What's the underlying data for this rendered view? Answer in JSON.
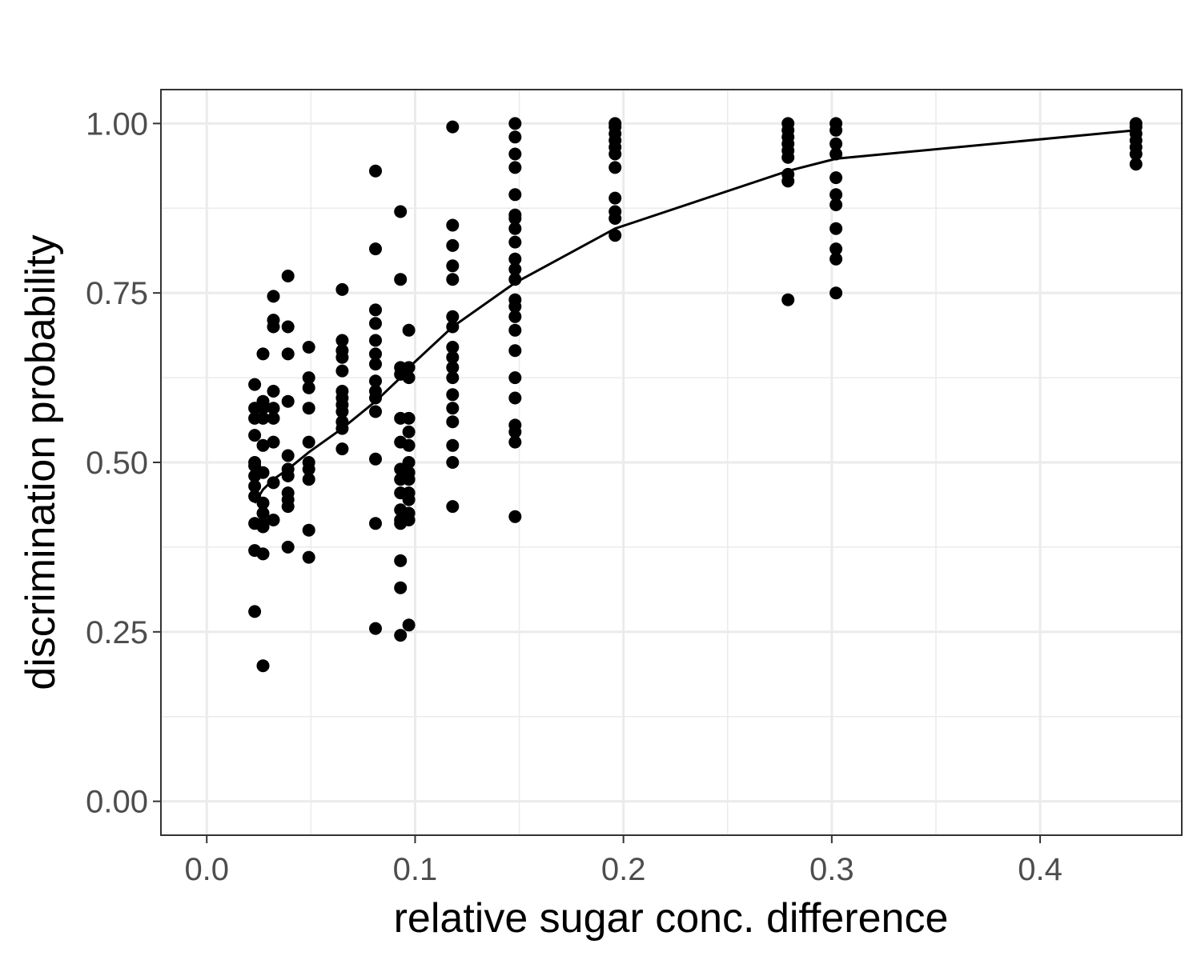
{
  "chart_data": {
    "type": "scatter",
    "title": "",
    "xlabel": "relative sugar conc. difference",
    "ylabel": "discrimination probability",
    "xlim": [
      -0.022,
      0.468
    ],
    "ylim": [
      -0.05,
      1.05
    ],
    "x_ticks": [
      {
        "value": 0.0,
        "label": "0.0"
      },
      {
        "value": 0.1,
        "label": "0.1"
      },
      {
        "value": 0.2,
        "label": "0.2"
      },
      {
        "value": 0.3,
        "label": "0.3"
      },
      {
        "value": 0.4,
        "label": "0.4"
      }
    ],
    "y_ticks": [
      {
        "value": 0.0,
        "label": "0.00"
      },
      {
        "value": 0.25,
        "label": "0.25"
      },
      {
        "value": 0.5,
        "label": "0.50"
      },
      {
        "value": 0.75,
        "label": "0.75"
      },
      {
        "value": 1.0,
        "label": "1.00"
      }
    ],
    "grid": true,
    "legend": "none",
    "colors": {
      "points": "#000000",
      "line": "#000000",
      "grid": "#ebebeb",
      "panel_border": "#333333",
      "tick_label": "#4d4d4d"
    },
    "points": [
      [
        0.023,
        0.28
      ],
      [
        0.023,
        0.37
      ],
      [
        0.023,
        0.41
      ],
      [
        0.023,
        0.45
      ],
      [
        0.023,
        0.465
      ],
      [
        0.023,
        0.48
      ],
      [
        0.023,
        0.495
      ],
      [
        0.023,
        0.5
      ],
      [
        0.023,
        0.54
      ],
      [
        0.023,
        0.565
      ],
      [
        0.023,
        0.58
      ],
      [
        0.023,
        0.615
      ],
      [
        0.027,
        0.2
      ],
      [
        0.027,
        0.365
      ],
      [
        0.027,
        0.405
      ],
      [
        0.027,
        0.41
      ],
      [
        0.027,
        0.425
      ],
      [
        0.027,
        0.44
      ],
      [
        0.027,
        0.485
      ],
      [
        0.027,
        0.525
      ],
      [
        0.027,
        0.565
      ],
      [
        0.027,
        0.58
      ],
      [
        0.027,
        0.59
      ],
      [
        0.027,
        0.66
      ],
      [
        0.032,
        0.415
      ],
      [
        0.032,
        0.47
      ],
      [
        0.032,
        0.53
      ],
      [
        0.032,
        0.565
      ],
      [
        0.032,
        0.58
      ],
      [
        0.032,
        0.605
      ],
      [
        0.032,
        0.7
      ],
      [
        0.032,
        0.71
      ],
      [
        0.032,
        0.745
      ],
      [
        0.039,
        0.375
      ],
      [
        0.039,
        0.435
      ],
      [
        0.039,
        0.445
      ],
      [
        0.039,
        0.455
      ],
      [
        0.039,
        0.48
      ],
      [
        0.039,
        0.49
      ],
      [
        0.039,
        0.51
      ],
      [
        0.039,
        0.59
      ],
      [
        0.039,
        0.66
      ],
      [
        0.039,
        0.7
      ],
      [
        0.039,
        0.775
      ],
      [
        0.049,
        0.36
      ],
      [
        0.049,
        0.4
      ],
      [
        0.049,
        0.475
      ],
      [
        0.049,
        0.49
      ],
      [
        0.049,
        0.5
      ],
      [
        0.049,
        0.53
      ],
      [
        0.049,
        0.58
      ],
      [
        0.049,
        0.61
      ],
      [
        0.049,
        0.625
      ],
      [
        0.049,
        0.67
      ],
      [
        0.065,
        0.52
      ],
      [
        0.065,
        0.55
      ],
      [
        0.065,
        0.56
      ],
      [
        0.065,
        0.575
      ],
      [
        0.065,
        0.585
      ],
      [
        0.065,
        0.595
      ],
      [
        0.065,
        0.605
      ],
      [
        0.065,
        0.635
      ],
      [
        0.065,
        0.655
      ],
      [
        0.065,
        0.665
      ],
      [
        0.065,
        0.68
      ],
      [
        0.065,
        0.755
      ],
      [
        0.081,
        0.255
      ],
      [
        0.081,
        0.41
      ],
      [
        0.081,
        0.505
      ],
      [
        0.081,
        0.575
      ],
      [
        0.081,
        0.595
      ],
      [
        0.081,
        0.605
      ],
      [
        0.081,
        0.62
      ],
      [
        0.081,
        0.645
      ],
      [
        0.081,
        0.66
      ],
      [
        0.081,
        0.68
      ],
      [
        0.081,
        0.705
      ],
      [
        0.081,
        0.725
      ],
      [
        0.081,
        0.815
      ],
      [
        0.081,
        0.93
      ],
      [
        0.093,
        0.245
      ],
      [
        0.093,
        0.315
      ],
      [
        0.093,
        0.355
      ],
      [
        0.093,
        0.41
      ],
      [
        0.093,
        0.415
      ],
      [
        0.093,
        0.43
      ],
      [
        0.093,
        0.455
      ],
      [
        0.093,
        0.475
      ],
      [
        0.093,
        0.49
      ],
      [
        0.093,
        0.53
      ],
      [
        0.093,
        0.565
      ],
      [
        0.093,
        0.63
      ],
      [
        0.093,
        0.64
      ],
      [
        0.093,
        0.77
      ],
      [
        0.093,
        0.87
      ],
      [
        0.097,
        0.26
      ],
      [
        0.097,
        0.415
      ],
      [
        0.097,
        0.425
      ],
      [
        0.097,
        0.445
      ],
      [
        0.097,
        0.455
      ],
      [
        0.097,
        0.475
      ],
      [
        0.097,
        0.485
      ],
      [
        0.097,
        0.5
      ],
      [
        0.097,
        0.525
      ],
      [
        0.097,
        0.545
      ],
      [
        0.097,
        0.565
      ],
      [
        0.097,
        0.625
      ],
      [
        0.097,
        0.64
      ],
      [
        0.097,
        0.695
      ],
      [
        0.118,
        0.435
      ],
      [
        0.118,
        0.5
      ],
      [
        0.118,
        0.525
      ],
      [
        0.118,
        0.56
      ],
      [
        0.118,
        0.58
      ],
      [
        0.118,
        0.6
      ],
      [
        0.118,
        0.625
      ],
      [
        0.118,
        0.64
      ],
      [
        0.118,
        0.655
      ],
      [
        0.118,
        0.67
      ],
      [
        0.118,
        0.7
      ],
      [
        0.118,
        0.715
      ],
      [
        0.118,
        0.77
      ],
      [
        0.118,
        0.79
      ],
      [
        0.118,
        0.82
      ],
      [
        0.118,
        0.85
      ],
      [
        0.118,
        0.995
      ],
      [
        0.148,
        0.42
      ],
      [
        0.148,
        0.53
      ],
      [
        0.148,
        0.545
      ],
      [
        0.148,
        0.555
      ],
      [
        0.148,
        0.595
      ],
      [
        0.148,
        0.625
      ],
      [
        0.148,
        0.665
      ],
      [
        0.148,
        0.695
      ],
      [
        0.148,
        0.715
      ],
      [
        0.148,
        0.73
      ],
      [
        0.148,
        0.74
      ],
      [
        0.148,
        0.77
      ],
      [
        0.148,
        0.785
      ],
      [
        0.148,
        0.8
      ],
      [
        0.148,
        0.825
      ],
      [
        0.148,
        0.845
      ],
      [
        0.148,
        0.86
      ],
      [
        0.148,
        0.865
      ],
      [
        0.148,
        0.895
      ],
      [
        0.148,
        0.935
      ],
      [
        0.148,
        0.955
      ],
      [
        0.148,
        0.98
      ],
      [
        0.148,
        1.0
      ],
      [
        0.196,
        0.835
      ],
      [
        0.196,
        0.86
      ],
      [
        0.196,
        0.87
      ],
      [
        0.196,
        0.89
      ],
      [
        0.196,
        0.935
      ],
      [
        0.196,
        0.955
      ],
      [
        0.196,
        0.965
      ],
      [
        0.196,
        0.975
      ],
      [
        0.196,
        0.985
      ],
      [
        0.196,
        0.995
      ],
      [
        0.196,
        1.0
      ],
      [
        0.279,
        0.74
      ],
      [
        0.279,
        0.915
      ],
      [
        0.279,
        0.925
      ],
      [
        0.279,
        0.95
      ],
      [
        0.279,
        0.96
      ],
      [
        0.279,
        0.97
      ],
      [
        0.279,
        0.98
      ],
      [
        0.279,
        0.99
      ],
      [
        0.279,
        1.0
      ],
      [
        0.302,
        0.75
      ],
      [
        0.302,
        0.8
      ],
      [
        0.302,
        0.815
      ],
      [
        0.302,
        0.845
      ],
      [
        0.302,
        0.88
      ],
      [
        0.302,
        0.895
      ],
      [
        0.302,
        0.92
      ],
      [
        0.302,
        0.955
      ],
      [
        0.302,
        0.97
      ],
      [
        0.302,
        0.99
      ],
      [
        0.302,
        1.0
      ],
      [
        0.446,
        0.94
      ],
      [
        0.446,
        0.955
      ],
      [
        0.446,
        0.965
      ],
      [
        0.446,
        0.975
      ],
      [
        0.446,
        0.985
      ],
      [
        0.446,
        0.995
      ],
      [
        0.446,
        1.0
      ]
    ],
    "fit_line": [
      [
        0.023,
        0.44
      ],
      [
        0.027,
        0.46
      ],
      [
        0.032,
        0.475
      ],
      [
        0.039,
        0.49
      ],
      [
        0.049,
        0.515
      ],
      [
        0.065,
        0.55
      ],
      [
        0.081,
        0.59
      ],
      [
        0.093,
        0.625
      ],
      [
        0.097,
        0.64
      ],
      [
        0.118,
        0.7
      ],
      [
        0.148,
        0.765
      ],
      [
        0.196,
        0.845
      ],
      [
        0.279,
        0.93
      ],
      [
        0.302,
        0.948
      ],
      [
        0.446,
        0.99
      ]
    ]
  }
}
